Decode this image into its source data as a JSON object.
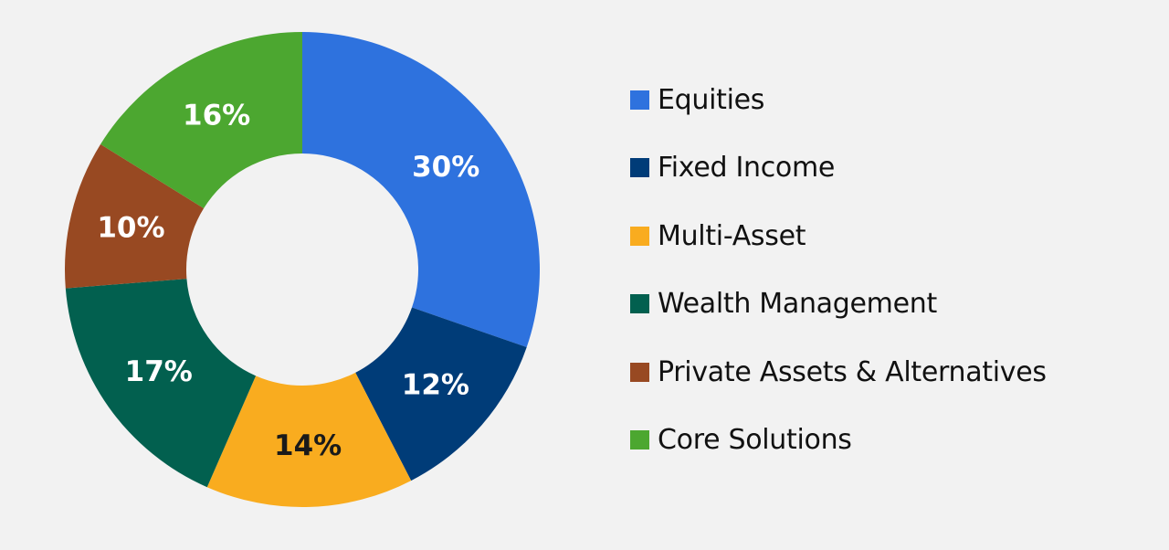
{
  "chart_data": {
    "type": "pie",
    "variant": "donut",
    "categories": [
      "Equities",
      "Fixed Income",
      "Multi-Asset",
      "Wealth Management",
      "Private Assets & Alternatives",
      "Core Solutions"
    ],
    "values": [
      30,
      12,
      14,
      17,
      10,
      16
    ],
    "data_labels": [
      "30%",
      "12%",
      "14%",
      "17%",
      "10%",
      "16%"
    ],
    "colors": [
      "#2e72de",
      "#003c78",
      "#f9ac1f",
      "#02604f",
      "#984922",
      "#4ca730"
    ],
    "label_colors": [
      "#ffffff",
      "#ffffff",
      "#1a1a1a",
      "#ffffff",
      "#ffffff",
      "#ffffff"
    ],
    "legend_position": "right",
    "title": ""
  }
}
